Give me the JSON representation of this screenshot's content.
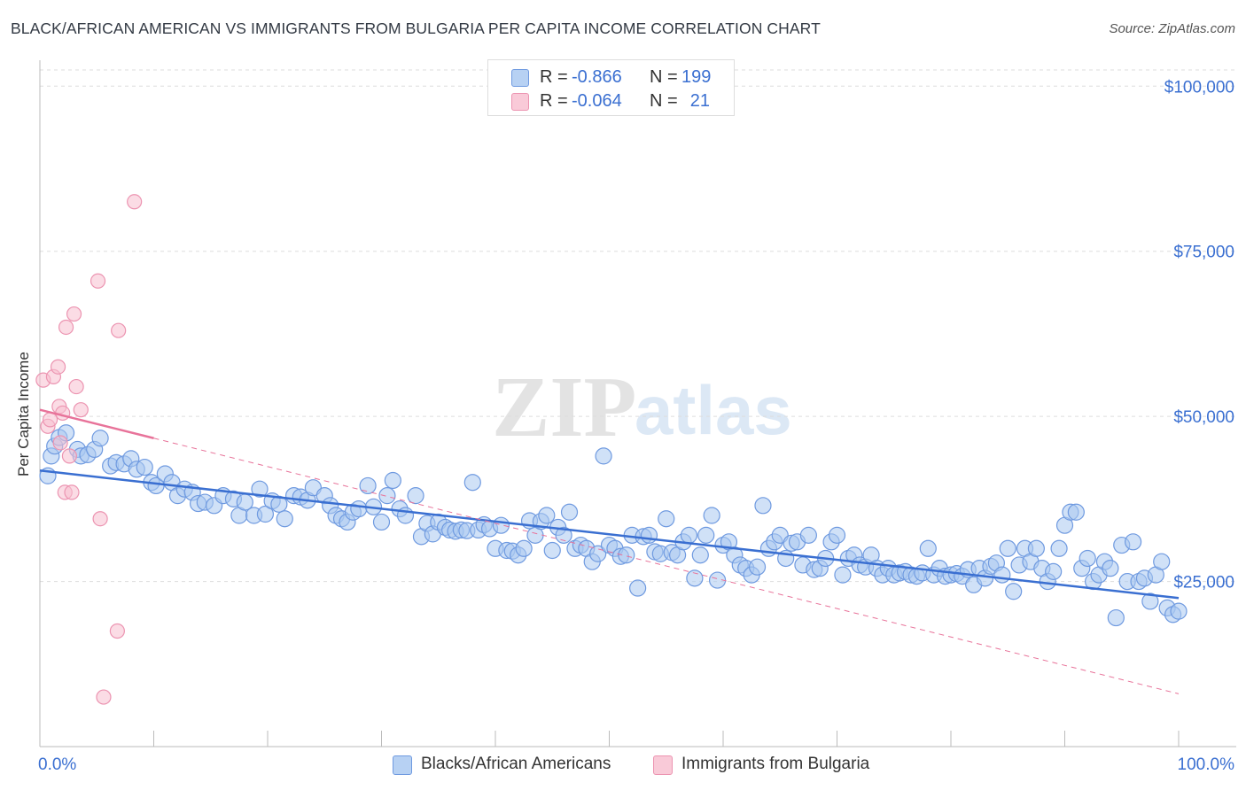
{
  "title": "BLACK/AFRICAN AMERICAN VS IMMIGRANTS FROM BULGARIA PER CAPITA INCOME CORRELATION CHART",
  "source": "Source: ZipAtlas.com",
  "watermark": {
    "zip": "ZIP",
    "atlas": "atlas"
  },
  "legend": {
    "r_label": "R =",
    "n_label": "N =",
    "rows": [
      {
        "r": "-0.866",
        "n": "199"
      },
      {
        "r": "-0.064",
        "n": "21"
      }
    ]
  },
  "chart_data": {
    "type": "scatter",
    "title": "BLACK/AFRICAN AMERICAN VS IMMIGRANTS FROM BULGARIA PER CAPITA INCOME CORRELATION CHART",
    "xlabel": "",
    "ylabel": "Per Capita Income",
    "xlim": [
      0,
      100
    ],
    "ylim": [
      0,
      105000
    ],
    "x_tick_labels": [
      "0.0%",
      "100.0%"
    ],
    "y_ticks": [
      25000,
      50000,
      75000,
      100000
    ],
    "y_tick_labels": [
      "$25,000",
      "$50,000",
      "$75,000",
      "$100,000"
    ],
    "grid": "horizontal dashed",
    "legend_position": "top-center",
    "colors": {
      "blue": "#3a6fd1",
      "blue_fill": "#aac8f0",
      "pink": "#e8739a",
      "pink_fill": "#f7bfd0",
      "axis_text": "#3a6fd1"
    },
    "series": [
      {
        "name": "Blacks/African Americans",
        "color": "#3a6fd1",
        "trend": {
          "x": [
            0,
            100
          ],
          "y": [
            41800,
            22500
          ]
        },
        "points": [
          [
            0.7,
            41000
          ],
          [
            1.0,
            44000
          ],
          [
            1.3,
            45500
          ],
          [
            1.7,
            46800
          ],
          [
            2.3,
            47500
          ],
          [
            3.3,
            45000
          ],
          [
            3.6,
            44000
          ],
          [
            4.2,
            44200
          ],
          [
            4.8,
            45000
          ],
          [
            5.3,
            46700
          ],
          [
            6.2,
            42500
          ],
          [
            6.7,
            43000
          ],
          [
            7.4,
            42800
          ],
          [
            8.0,
            43600
          ],
          [
            8.5,
            42000
          ],
          [
            9.2,
            42300
          ],
          [
            9.8,
            40000
          ],
          [
            10.2,
            39500
          ],
          [
            11.0,
            41300
          ],
          [
            11.6,
            40000
          ],
          [
            12.1,
            38000
          ],
          [
            12.7,
            39000
          ],
          [
            13.4,
            38500
          ],
          [
            13.9,
            36800
          ],
          [
            14.5,
            37000
          ],
          [
            15.3,
            36500
          ],
          [
            16.1,
            38000
          ],
          [
            17.0,
            37500
          ],
          [
            17.5,
            35000
          ],
          [
            18.0,
            37000
          ],
          [
            18.8,
            35000
          ],
          [
            19.3,
            39000
          ],
          [
            19.8,
            35200
          ],
          [
            20.4,
            37200
          ],
          [
            21.0,
            36700
          ],
          [
            21.5,
            34500
          ],
          [
            22.3,
            38000
          ],
          [
            22.9,
            37800
          ],
          [
            23.5,
            37300
          ],
          [
            24.0,
            39200
          ],
          [
            25.0,
            38000
          ],
          [
            25.5,
            36500
          ],
          [
            26.0,
            35000
          ],
          [
            26.5,
            34500
          ],
          [
            27.0,
            34000
          ],
          [
            27.5,
            35500
          ],
          [
            28.0,
            36000
          ],
          [
            28.8,
            39500
          ],
          [
            29.3,
            36300
          ],
          [
            30.0,
            34000
          ],
          [
            30.5,
            38000
          ],
          [
            31.0,
            40300
          ],
          [
            31.6,
            36000
          ],
          [
            32.1,
            35000
          ],
          [
            33.0,
            38000
          ],
          [
            33.5,
            31800
          ],
          [
            34.0,
            33800
          ],
          [
            34.5,
            32200
          ],
          [
            35.0,
            34000
          ],
          [
            35.6,
            33200
          ],
          [
            36.0,
            32800
          ],
          [
            36.5,
            32600
          ],
          [
            37.0,
            32800
          ],
          [
            37.5,
            32700
          ],
          [
            38.0,
            40000
          ],
          [
            38.5,
            32800
          ],
          [
            39.0,
            33600
          ],
          [
            39.5,
            33000
          ],
          [
            40.0,
            30000
          ],
          [
            40.5,
            33500
          ],
          [
            41.0,
            29700
          ],
          [
            41.5,
            29600
          ],
          [
            42.0,
            29000
          ],
          [
            42.5,
            30000
          ],
          [
            43.0,
            34200
          ],
          [
            43.5,
            32000
          ],
          [
            44.0,
            34100
          ],
          [
            44.5,
            35000
          ],
          [
            45.0,
            29700
          ],
          [
            45.5,
            33200
          ],
          [
            46.0,
            32000
          ],
          [
            46.5,
            35500
          ],
          [
            47.0,
            30000
          ],
          [
            47.5,
            30500
          ],
          [
            48.0,
            30000
          ],
          [
            48.5,
            28000
          ],
          [
            49.0,
            29200
          ],
          [
            49.5,
            44000
          ],
          [
            50.0,
            30500
          ],
          [
            50.5,
            30000
          ],
          [
            51.0,
            28800
          ],
          [
            51.5,
            29000
          ],
          [
            52.0,
            32000
          ],
          [
            52.5,
            24000
          ],
          [
            53.0,
            31800
          ],
          [
            53.5,
            32000
          ],
          [
            54.0,
            29500
          ],
          [
            54.5,
            29200
          ],
          [
            55.0,
            34500
          ],
          [
            55.5,
            29400
          ],
          [
            56.0,
            29000
          ],
          [
            56.5,
            31000
          ],
          [
            57.0,
            32000
          ],
          [
            57.5,
            25500
          ],
          [
            58.0,
            29000
          ],
          [
            58.5,
            32000
          ],
          [
            59.0,
            35000
          ],
          [
            59.5,
            25200
          ],
          [
            60.0,
            30500
          ],
          [
            60.5,
            31000
          ],
          [
            61.0,
            29000
          ],
          [
            61.5,
            27500
          ],
          [
            62.0,
            27000
          ],
          [
            62.5,
            26000
          ],
          [
            63.0,
            27200
          ],
          [
            63.5,
            36500
          ],
          [
            64.0,
            30000
          ],
          [
            64.5,
            31000
          ],
          [
            65.0,
            32000
          ],
          [
            65.5,
            28500
          ],
          [
            66.0,
            30800
          ],
          [
            66.5,
            31000
          ],
          [
            67.0,
            27500
          ],
          [
            67.5,
            32000
          ],
          [
            68.0,
            26800
          ],
          [
            68.5,
            27000
          ],
          [
            69.0,
            28500
          ],
          [
            69.5,
            31000
          ],
          [
            70.0,
            32000
          ],
          [
            70.5,
            26000
          ],
          [
            71.0,
            28500
          ],
          [
            71.5,
            29000
          ],
          [
            72.0,
            27500
          ],
          [
            72.5,
            27200
          ],
          [
            73.0,
            29000
          ],
          [
            73.5,
            27000
          ],
          [
            74.0,
            26000
          ],
          [
            74.5,
            27000
          ],
          [
            75.0,
            26000
          ],
          [
            75.5,
            26300
          ],
          [
            76.0,
            26500
          ],
          [
            76.5,
            26000
          ],
          [
            77.0,
            25800
          ],
          [
            77.5,
            26300
          ],
          [
            78.0,
            30000
          ],
          [
            78.5,
            26000
          ],
          [
            79.0,
            27000
          ],
          [
            79.5,
            25800
          ],
          [
            80.0,
            26000
          ],
          [
            80.5,
            26200
          ],
          [
            81.0,
            25800
          ],
          [
            81.5,
            26800
          ],
          [
            82.0,
            24500
          ],
          [
            82.5,
            27000
          ],
          [
            83.0,
            25500
          ],
          [
            83.5,
            27300
          ],
          [
            84.0,
            27800
          ],
          [
            84.5,
            26000
          ],
          [
            85.0,
            30000
          ],
          [
            85.5,
            23500
          ],
          [
            86.0,
            27500
          ],
          [
            86.5,
            30000
          ],
          [
            87.0,
            28000
          ],
          [
            87.5,
            30000
          ],
          [
            88.0,
            27000
          ],
          [
            88.5,
            25000
          ],
          [
            89.0,
            26500
          ],
          [
            89.5,
            30000
          ],
          [
            90.0,
            33500
          ],
          [
            90.5,
            35500
          ],
          [
            91.0,
            35500
          ],
          [
            91.5,
            27000
          ],
          [
            92.0,
            28500
          ],
          [
            92.5,
            25000
          ],
          [
            93.0,
            26000
          ],
          [
            93.5,
            28000
          ],
          [
            94.0,
            27000
          ],
          [
            94.5,
            19500
          ],
          [
            95.0,
            30500
          ],
          [
            95.5,
            25000
          ],
          [
            96.0,
            31000
          ],
          [
            96.5,
            25000
          ],
          [
            97.0,
            25500
          ],
          [
            97.5,
            22000
          ],
          [
            98.0,
            26000
          ],
          [
            98.5,
            28000
          ],
          [
            99.0,
            21000
          ],
          [
            99.5,
            20000
          ],
          [
            100.0,
            20500
          ]
        ]
      },
      {
        "name": "Immigrants from Bulgaria",
        "color": "#e8739a",
        "trend": {
          "x": [
            0,
            100
          ],
          "y": [
            51000,
            8000
          ]
        },
        "points": [
          [
            0.3,
            55500
          ],
          [
            0.7,
            48500
          ],
          [
            0.9,
            49500
          ],
          [
            1.2,
            56000
          ],
          [
            1.6,
            57500
          ],
          [
            1.7,
            51500
          ],
          [
            1.8,
            46000
          ],
          [
            2.0,
            50500
          ],
          [
            2.2,
            38500
          ],
          [
            2.3,
            63500
          ],
          [
            2.6,
            44000
          ],
          [
            2.8,
            38500
          ],
          [
            3.0,
            65500
          ],
          [
            3.2,
            54500
          ],
          [
            3.6,
            51000
          ],
          [
            5.1,
            70500
          ],
          [
            5.3,
            34500
          ],
          [
            5.6,
            7500
          ],
          [
            6.8,
            17500
          ],
          [
            6.9,
            63000
          ],
          [
            8.3,
            82500
          ]
        ]
      }
    ]
  }
}
